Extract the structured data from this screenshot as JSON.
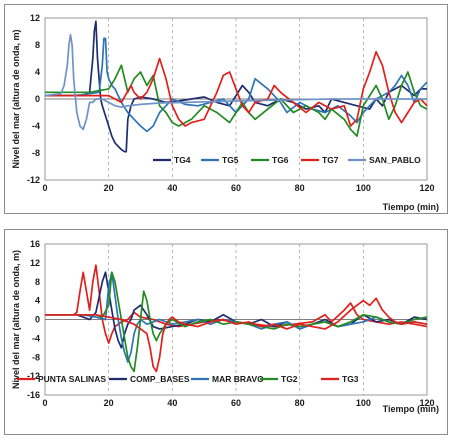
{
  "chart_data": [
    {
      "type": "line",
      "xlabel": "Tiempo (min)",
      "ylabel": "Nivel del mar (altura de onda, m)",
      "xlim": [
        0,
        120
      ],
      "ylim": [
        -12,
        12
      ],
      "xticks": [
        "0",
        "20",
        "40",
        "60",
        "80",
        "100",
        "120"
      ],
      "yticks": [
        "12",
        "8",
        "4",
        "0",
        "-4",
        "-8",
        "-12"
      ],
      "grid": "vertical dashed",
      "legend": "bottom",
      "series": [
        {
          "name": "TG4",
          "color": "#1f2d6e",
          "x": [
            0,
            8,
            12,
            14,
            15,
            15.5,
            16,
            16.5,
            17,
            17.5,
            18,
            19,
            20,
            21,
            22,
            23,
            24,
            25,
            25.5,
            26,
            27,
            28,
            30,
            34,
            38,
            42,
            46,
            50,
            54,
            58,
            62,
            64,
            66,
            70,
            74,
            78,
            82,
            86,
            88,
            90,
            94,
            98,
            102,
            104,
            106,
            108,
            112,
            116,
            118,
            120
          ],
          "y": [
            0.5,
            0.5,
            0.6,
            1.0,
            6.0,
            10.0,
            11.5,
            6.0,
            3.0,
            0.0,
            -1.0,
            -2.5,
            -4.0,
            -5.5,
            -6.5,
            -7.0,
            -7.5,
            -7.8,
            -7.8,
            -3.0,
            -1.0,
            0.0,
            0.3,
            0.0,
            -0.5,
            -0.3,
            0.0,
            0.3,
            -0.5,
            -1.0,
            2.0,
            1.0,
            -0.5,
            -1.0,
            0.0,
            -0.5,
            -1.5,
            -1.0,
            -2.0,
            0.0,
            -0.5,
            -1.0,
            -1.5,
            0.0,
            -1.0,
            1.0,
            2.0,
            0.5,
            1.5,
            1.5
          ]
        },
        {
          "name": "TG5",
          "color": "#2e75b6",
          "x": [
            0,
            10,
            14,
            17,
            18,
            18.5,
            19,
            19.5,
            20,
            21,
            22,
            24,
            26,
            28,
            30,
            32,
            34,
            36,
            38,
            40,
            44,
            48,
            52,
            56,
            60,
            64,
            66,
            70,
            74,
            76,
            80,
            84,
            88,
            92,
            96,
            98,
            100,
            104,
            108,
            110,
            112,
            114,
            116,
            118,
            120
          ],
          "y": [
            0.5,
            0.5,
            0.8,
            1.0,
            5.0,
            9.0,
            9.0,
            4.0,
            3.0,
            2.0,
            1.5,
            -0.5,
            -2.0,
            -3.0,
            -4.0,
            -4.8,
            -4.0,
            -2.0,
            -1.0,
            0.0,
            -0.8,
            -1.0,
            -0.5,
            0.0,
            -2.0,
            0.0,
            3.0,
            1.5,
            -0.5,
            -2.0,
            -0.5,
            -1.5,
            -2.0,
            -1.0,
            -2.5,
            -3.5,
            -2.0,
            0.0,
            1.0,
            2.0,
            3.5,
            2.0,
            -0.5,
            1.5,
            2.5
          ]
        },
        {
          "name": "TG6",
          "color": "#228b22",
          "x": [
            0,
            14,
            20,
            22,
            24,
            26,
            28,
            30,
            32,
            34,
            36,
            38,
            40,
            42,
            46,
            50,
            54,
            58,
            62,
            64,
            66,
            70,
            74,
            78,
            82,
            86,
            88,
            90,
            94,
            96,
            98,
            100,
            104,
            106,
            108,
            110,
            112,
            114,
            116,
            118,
            120
          ],
          "y": [
            1.0,
            1.0,
            1.5,
            3.0,
            5.0,
            1.0,
            3.0,
            4.0,
            2.0,
            3.5,
            -1.0,
            -2.0,
            -3.5,
            -4.0,
            -3.0,
            -1.0,
            -2.0,
            -3.5,
            -0.5,
            -2.0,
            -3.0,
            -1.5,
            0.0,
            -2.0,
            -1.0,
            -2.0,
            -3.0,
            -1.5,
            -3.0,
            -4.5,
            -5.5,
            -1.0,
            2.0,
            0.0,
            -3.0,
            -1.0,
            2.0,
            4.0,
            1.0,
            -1.0,
            -1.5
          ]
        },
        {
          "name": "TG7",
          "color": "#e0201c",
          "x": [
            0,
            20,
            24,
            27,
            28,
            30,
            32,
            34,
            36,
            38,
            40,
            42,
            44,
            46,
            50,
            54,
            56,
            58,
            60,
            62,
            64,
            66,
            70,
            72,
            74,
            78,
            82,
            86,
            90,
            94,
            96,
            98,
            100,
            102,
            104,
            106,
            108,
            110,
            112,
            114,
            116,
            118,
            120
          ],
          "y": [
            0.5,
            0.5,
            -0.5,
            2.0,
            1.0,
            0.0,
            1.0,
            3.0,
            6.0,
            3.0,
            -1.0,
            -3.0,
            -4.0,
            -3.5,
            -3.0,
            1.0,
            3.5,
            4.0,
            1.5,
            -1.0,
            -2.0,
            -0.5,
            0.0,
            2.0,
            1.0,
            -0.5,
            -2.0,
            -0.5,
            -1.5,
            -1.0,
            -4.0,
            -3.0,
            1.5,
            4.0,
            7.0,
            5.0,
            1.0,
            -2.0,
            -3.5,
            -2.0,
            -0.5,
            0.0,
            -1.0
          ]
        },
        {
          "name": "SAN_PABLO",
          "color": "#6f92c7",
          "x": [
            0,
            5,
            6,
            7,
            7.5,
            8,
            8.5,
            9,
            10,
            11,
            12,
            13,
            14,
            15,
            16,
            18,
            20,
            22,
            24,
            26,
            30,
            36,
            44,
            52,
            60,
            70,
            80,
            90,
            100,
            110,
            120
          ],
          "y": [
            0.5,
            0.8,
            2.0,
            5.0,
            8.0,
            9.5,
            8.0,
            3.0,
            -2.0,
            -4.0,
            -4.5,
            -3.0,
            -0.5,
            -0.5,
            0.0,
            0.0,
            -0.5,
            -1.0,
            -1.2,
            -1.0,
            -0.8,
            -0.6,
            -0.5,
            -0.4,
            -0.3,
            -0.2,
            -0.1,
            0.0,
            0.0,
            0.0,
            0.0
          ]
        }
      ]
    },
    {
      "type": "line",
      "xlabel": "Tiempo (min)",
      "ylabel": "Nivel del mar (altura de onda, m)",
      "xlim": [
        0,
        120
      ],
      "ylim": [
        -16,
        16
      ],
      "xticks": [
        "0",
        "20",
        "40",
        "60",
        "80",
        "100",
        "120"
      ],
      "yticks": [
        "16",
        "12",
        "8",
        "4",
        "0",
        "-4",
        "-8",
        "-12",
        "-16"
      ],
      "grid": "vertical dashed",
      "legend": "bottom",
      "series": [
        {
          "name": "PUNTA SALINAS",
          "color": "#e0201c",
          "x": [
            0,
            9,
            10,
            11,
            12,
            13,
            14,
            15,
            16,
            17,
            18,
            19,
            20,
            21,
            22,
            24,
            26,
            28,
            30,
            34,
            38,
            42,
            46,
            50,
            54,
            60,
            66,
            72,
            78,
            84,
            88,
            90,
            94,
            96,
            98,
            100,
            104,
            108,
            112,
            116,
            120
          ],
          "y": [
            1.0,
            1.0,
            1.5,
            6.0,
            10.0,
            6.0,
            2.0,
            8.0,
            11.5,
            6.0,
            0.0,
            -3.0,
            -5.0,
            -3.0,
            -1.5,
            -0.5,
            0.0,
            1.5,
            0.5,
            0.0,
            -1.0,
            -1.5,
            -1.0,
            -0.5,
            0.0,
            -0.5,
            -1.0,
            -1.5,
            -1.0,
            -0.5,
            1.0,
            -0.5,
            2.0,
            3.5,
            1.0,
            0.0,
            -0.5,
            -1.0,
            -0.5,
            -1.0,
            -1.5
          ]
        },
        {
          "name": "COMP_BASES",
          "color": "#1f2d6e",
          "x": [
            0,
            10,
            12,
            14,
            16,
            18,
            19,
            20,
            21,
            22,
            23,
            24,
            25,
            26,
            27,
            28,
            30,
            32,
            34,
            36,
            40,
            44,
            48,
            52,
            56,
            60,
            64,
            68,
            72,
            76,
            80,
            84,
            88,
            92,
            96,
            100,
            104,
            108,
            112,
            116,
            120
          ],
          "y": [
            1.0,
            1.0,
            0.5,
            0.0,
            1.5,
            8.0,
            10.0,
            6.0,
            2.0,
            -2.0,
            -4.5,
            -6.0,
            -3.0,
            -1.0,
            0.0,
            2.0,
            3.0,
            1.0,
            -1.5,
            -2.0,
            -1.5,
            -1.0,
            0.0,
            -0.5,
            1.0,
            -0.5,
            -1.0,
            0.0,
            -1.5,
            -0.5,
            -2.0,
            -1.0,
            0.0,
            -1.5,
            -1.0,
            1.0,
            -0.5,
            0.0,
            -1.0,
            0.5,
            0.0
          ]
        },
        {
          "name": "MAR BRAVO",
          "color": "#2e75b6",
          "x": [
            0,
            12,
            16,
            19,
            20,
            21,
            22,
            23,
            24,
            25,
            26,
            27,
            28,
            29,
            30,
            32,
            34,
            36,
            40,
            44,
            48,
            52,
            56,
            60,
            64,
            68,
            72,
            76,
            80,
            84,
            88,
            92,
            96,
            100,
            104,
            108,
            112,
            116,
            120
          ],
          "y": [
            1.0,
            1.0,
            0.5,
            0.0,
            7.0,
            10.0,
            5.0,
            0.0,
            -4.0,
            -7.0,
            -9.0,
            -7.0,
            -3.0,
            -1.0,
            0.0,
            -1.0,
            -0.5,
            0.0,
            -1.0,
            -0.5,
            0.0,
            -1.0,
            0.0,
            -0.5,
            -1.0,
            -2.0,
            -1.0,
            -0.5,
            -2.0,
            -1.0,
            -0.5,
            -1.5,
            -1.0,
            -0.5,
            0.5,
            -0.5,
            -1.0,
            -0.5,
            -1.0
          ]
        },
        {
          "name": "TG2",
          "color": "#228b22",
          "x": [
            0,
            12,
            16,
            18,
            20,
            21,
            22,
            23,
            24,
            25,
            26,
            27,
            28,
            29,
            30,
            31,
            32,
            33,
            34,
            35,
            36,
            38,
            40,
            44,
            48,
            52,
            56,
            60,
            64,
            68,
            72,
            76,
            80,
            84,
            88,
            92,
            96,
            100,
            104,
            108,
            112,
            116,
            120
          ],
          "y": [
            1.0,
            1.0,
            1.0,
            0.5,
            3.0,
            10.0,
            8.0,
            4.0,
            0.0,
            -4.0,
            -8.0,
            -10.0,
            -11.0,
            -6.0,
            0.0,
            6.0,
            4.0,
            0.0,
            -3.0,
            -4.5,
            -3.0,
            -1.0,
            0.0,
            -1.5,
            -0.5,
            0.0,
            -1.0,
            -0.5,
            -1.0,
            -1.5,
            -2.0,
            -1.0,
            -1.5,
            -1.0,
            -0.5,
            -1.5,
            -0.5,
            1.0,
            0.5,
            -0.5,
            -1.0,
            0.0,
            0.5
          ]
        },
        {
          "name": "TG3",
          "color": "#e0201c",
          "x": [
            0,
            16,
            20,
            24,
            28,
            30,
            32,
            33,
            34,
            35,
            36,
            37,
            38,
            39,
            40,
            42,
            44,
            48,
            52,
            56,
            60,
            64,
            68,
            72,
            76,
            80,
            84,
            88,
            92,
            96,
            100,
            102,
            104,
            106,
            108,
            110,
            112,
            116,
            120
          ],
          "y": [
            1.0,
            1.0,
            0.5,
            0.0,
            -1.0,
            -2.0,
            -3.0,
            -6.0,
            -10.0,
            -11.0,
            -8.0,
            -3.0,
            -1.0,
            0.0,
            0.5,
            -0.5,
            -1.0,
            -1.5,
            -0.5,
            0.0,
            -1.0,
            -0.5,
            -1.5,
            -1.0,
            -2.0,
            -1.0,
            -1.5,
            -2.0,
            -0.5,
            2.0,
            4.0,
            3.0,
            4.5,
            2.0,
            0.5,
            -0.5,
            -1.0,
            -0.5,
            -1.0
          ]
        }
      ]
    }
  ]
}
